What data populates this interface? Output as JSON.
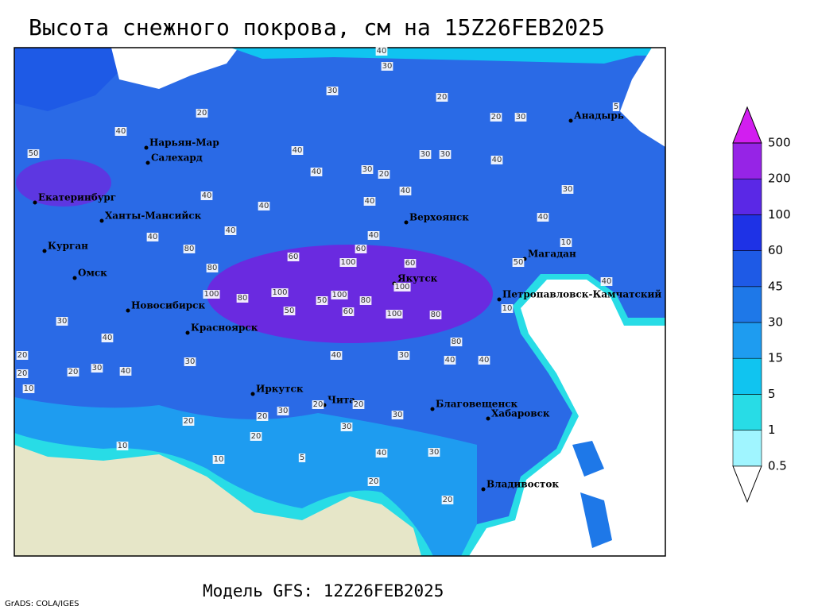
{
  "header": {
    "title": "Высота снежного покрова, см на 15Z26FEB2025"
  },
  "map": {
    "cities": [
      "Анадырь",
      "Нарьян-Мар",
      "Салехард",
      "Екатеринбург",
      "Ханты-Мансийск",
      "Верхоянск",
      "Курган",
      "Магадан",
      "Омск",
      "Якутск",
      "Петропавловск-Камчатский",
      "Новосибирск",
      "Красноярск",
      "Иркутск",
      "Чита",
      "Благовещенск",
      "Хабаровск",
      "Владивосток"
    ],
    "contour_labels": [
      40,
      30,
      30,
      20,
      20,
      20,
      30,
      5,
      40,
      50,
      40,
      30,
      30,
      40,
      40,
      30,
      20,
      40,
      40,
      40,
      40,
      30,
      40,
      10,
      40,
      40,
      80,
      40,
      60,
      60,
      100,
      60,
      80,
      50,
      40,
      100,
      100,
      100,
      100,
      80,
      80,
      80,
      50,
      60,
      100,
      50,
      10,
      30,
      40,
      80,
      40,
      20,
      20,
      30,
      40,
      30,
      30,
      40,
      40,
      10,
      20,
      20,
      20,
      20,
      30,
      30,
      30,
      20,
      10,
      5,
      30,
      40,
      20,
      20,
      10,
      20
    ]
  },
  "legend": {
    "levels": [
      0.5,
      1,
      5,
      15,
      30,
      45,
      60,
      100,
      200,
      500
    ],
    "colors": [
      "#ffffff",
      "#a0f5ff",
      "#28dce6",
      "#10c4f0",
      "#1e9cf0",
      "#1e78e8",
      "#1e5ae6",
      "#1e32e6",
      "#5a28e6",
      "#9624e6",
      "#d21ef0"
    ]
  },
  "footer": {
    "model": "Модель GFS: 12Z26FEB2025",
    "credit": "GrADS: COLA/IGES"
  }
}
